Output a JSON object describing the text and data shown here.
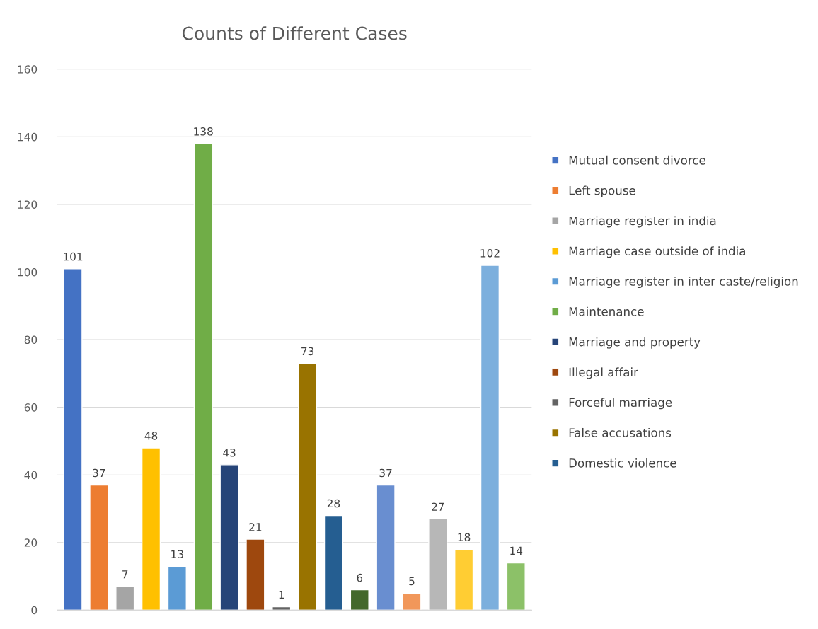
{
  "chart_data": {
    "type": "bar",
    "title": "Counts of Different Cases",
    "categories": [
      null,
      null,
      null,
      null,
      null,
      null,
      null,
      null,
      null,
      null,
      null,
      null,
      null,
      null,
      null,
      null,
      null,
      null
    ],
    "series": [
      {
        "name": "Mutual consent divorce",
        "color": "#4472c4",
        "values": [
          101,
          null,
          null,
          null,
          null,
          null,
          null,
          null,
          null,
          null,
          null,
          null,
          null,
          null,
          null,
          null,
          null,
          null
        ]
      },
      {
        "name": "Left spouse",
        "color": "#ed7d31",
        "values": [
          null,
          37,
          null,
          null,
          null,
          null,
          null,
          null,
          null,
          null,
          null,
          null,
          null,
          null,
          null,
          null,
          null,
          null
        ]
      },
      {
        "name": "Marriage register in india",
        "color": "#a5a5a5",
        "values": [
          null,
          null,
          7,
          null,
          null,
          null,
          null,
          null,
          null,
          null,
          null,
          null,
          null,
          null,
          null,
          null,
          null,
          null
        ]
      },
      {
        "name": "Marriage case outside of india",
        "color": "#ffc000",
        "values": [
          null,
          null,
          null,
          48,
          null,
          null,
          null,
          null,
          null,
          null,
          null,
          null,
          null,
          null,
          null,
          null,
          null,
          null
        ]
      },
      {
        "name": "Marriage register in inter caste/religion",
        "color": "#5b9bd5",
        "values": [
          null,
          null,
          null,
          null,
          13,
          null,
          null,
          null,
          null,
          null,
          null,
          null,
          null,
          null,
          null,
          null,
          null,
          null
        ]
      },
      {
        "name": "Maintenance",
        "color": "#70ad47",
        "values": [
          null,
          null,
          null,
          null,
          null,
          138,
          null,
          null,
          null,
          null,
          null,
          null,
          null,
          null,
          null,
          null,
          null,
          null
        ]
      },
      {
        "name": "Marriage and property",
        "color": "#264478",
        "values": [
          null,
          null,
          null,
          null,
          null,
          null,
          43,
          null,
          null,
          null,
          null,
          null,
          null,
          null,
          null,
          null,
          null,
          null
        ]
      },
      {
        "name": "Illegal affair",
        "color": "#9e480e",
        "values": [
          null,
          null,
          null,
          null,
          null,
          null,
          null,
          21,
          null,
          null,
          null,
          null,
          null,
          null,
          null,
          null,
          null,
          null
        ]
      },
      {
        "name": "Forceful marriage",
        "color": "#636363",
        "values": [
          null,
          null,
          null,
          null,
          null,
          null,
          null,
          null,
          1,
          null,
          null,
          null,
          null,
          null,
          null,
          null,
          null,
          null
        ]
      },
      {
        "name": "False accusations",
        "color": "#997300",
        "values": [
          null,
          null,
          null,
          null,
          null,
          null,
          null,
          null,
          null,
          73,
          null,
          null,
          null,
          null,
          null,
          null,
          null,
          null
        ]
      },
      {
        "name": "Domestic violence",
        "color": "#255e91",
        "values": [
          null,
          null,
          null,
          null,
          null,
          null,
          null,
          null,
          null,
          null,
          28,
          null,
          null,
          null,
          null,
          null,
          null,
          null
        ]
      },
      {
        "color": "#43682b",
        "values": [
          null,
          null,
          null,
          null,
          null,
          null,
          null,
          null,
          null,
          null,
          null,
          6,
          null,
          null,
          null,
          null,
          null,
          null
        ]
      },
      {
        "color": "#698ed0",
        "values": [
          null,
          null,
          null,
          null,
          null,
          null,
          null,
          null,
          null,
          null,
          null,
          null,
          37,
          null,
          null,
          null,
          null,
          null
        ]
      },
      {
        "color": "#f1975a",
        "values": [
          null,
          null,
          null,
          null,
          null,
          null,
          null,
          null,
          null,
          null,
          null,
          null,
          null,
          5,
          null,
          null,
          null,
          null
        ]
      },
      {
        "color": "#b7b7b7",
        "values": [
          null,
          null,
          null,
          null,
          null,
          null,
          null,
          null,
          null,
          null,
          null,
          null,
          null,
          null,
          27,
          null,
          null,
          null
        ]
      },
      {
        "color": "#ffcd33",
        "values": [
          null,
          null,
          null,
          null,
          null,
          null,
          null,
          null,
          null,
          null,
          null,
          null,
          null,
          null,
          null,
          18,
          null,
          null
        ]
      },
      {
        "color": "#7cafdd",
        "values": [
          null,
          null,
          null,
          null,
          null,
          null,
          null,
          null,
          null,
          null,
          null,
          null,
          null,
          null,
          null,
          null,
          102,
          null
        ]
      },
      {
        "color": "#8cc168",
        "values": [
          null,
          null,
          null,
          null,
          null,
          null,
          null,
          null,
          null,
          null,
          null,
          null,
          null,
          null,
          null,
          null,
          null,
          14
        ]
      }
    ],
    "ylim": [
      0,
      160
    ],
    "yticks": [
      0,
      20,
      40,
      60,
      80,
      100,
      120,
      140,
      160
    ],
    "grid": "y",
    "legend": "right",
    "data_labels": true
  }
}
